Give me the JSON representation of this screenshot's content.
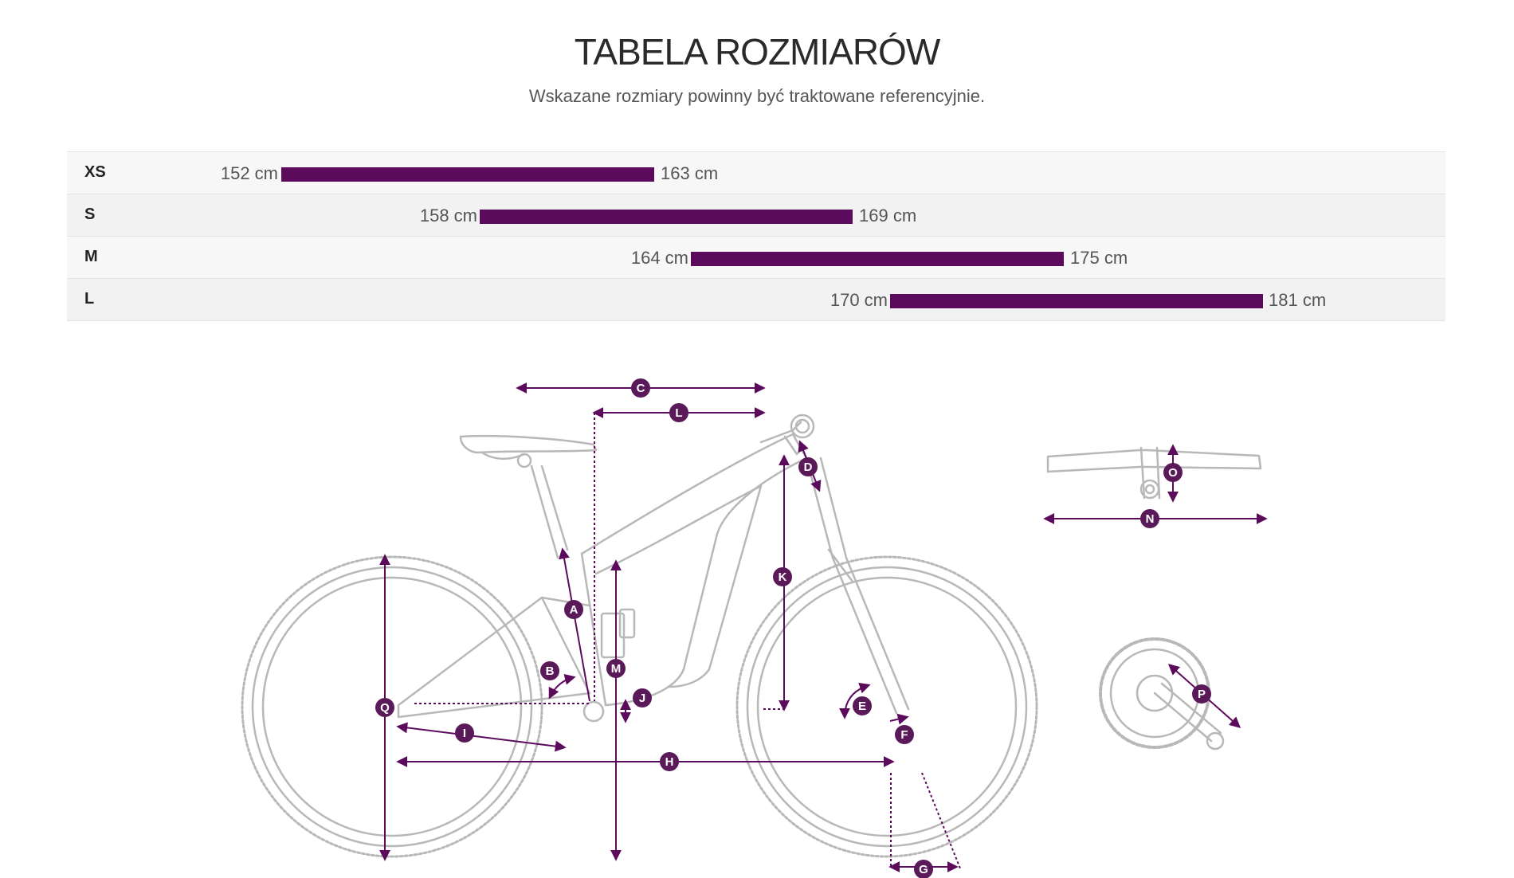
{
  "header": {
    "title": "TABELA ROZMIARÓW",
    "subtitle": "Wskazane rozmiary powinny być traktowane referencyjnie."
  },
  "sizes": [
    {
      "label": "XS",
      "min": "152 cm",
      "max": "163 cm"
    },
    {
      "label": "S",
      "min": "158 cm",
      "max": "169 cm"
    },
    {
      "label": "M",
      "min": "164 cm",
      "max": "175 cm"
    },
    {
      "label": "L",
      "min": "170 cm",
      "max": "181 cm"
    }
  ],
  "diagram": {
    "labels": [
      "A",
      "B",
      "C",
      "D",
      "E",
      "F",
      "G",
      "H",
      "I",
      "J",
      "K",
      "L",
      "M",
      "N",
      "O",
      "P",
      "Q"
    ]
  },
  "colors": {
    "accent": "#5c0a5c",
    "frame": "#b8b8b8",
    "label_circle": "#5a1a5a"
  }
}
